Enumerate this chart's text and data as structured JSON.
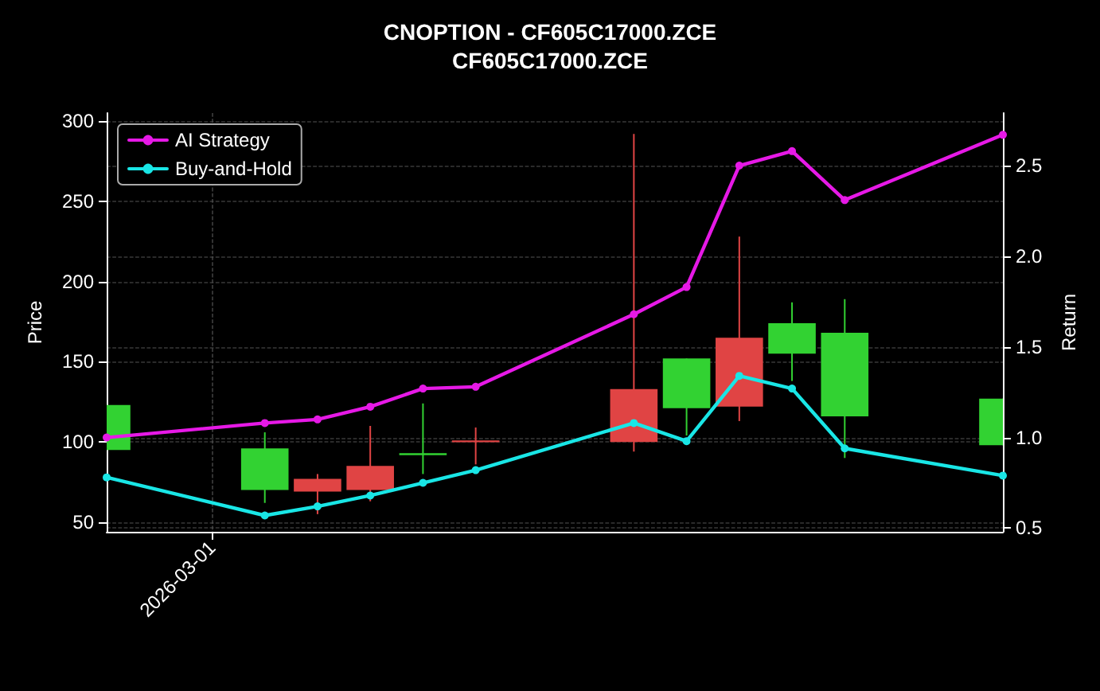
{
  "chart_data": {
    "type": "candlestick",
    "title": "CNOPTION - CF605C17000.ZCE",
    "subtitle": "CF605C17000.ZCE",
    "ylabel": "Price",
    "y2label": "Return",
    "categories": [
      null,
      null,
      "2026-03-01",
      null,
      null,
      null,
      null,
      null,
      null,
      null,
      null,
      null,
      null,
      null,
      null,
      null,
      null,
      null
    ],
    "ohlc": [
      [
        95,
        123,
        95,
        123
      ],
      null,
      null,
      [
        70,
        106,
        62,
        96
      ],
      [
        77,
        80,
        55,
        69
      ],
      [
        85,
        110,
        63,
        70
      ],
      [
        92,
        124,
        80,
        93
      ],
      [
        101,
        109,
        86,
        100
      ],
      null,
      null,
      [
        133,
        292,
        94,
        100
      ],
      [
        121,
        152,
        104,
        152
      ],
      [
        165,
        228,
        113,
        122
      ],
      [
        155,
        187,
        138,
        174
      ],
      [
        116,
        189,
        90,
        168
      ],
      null,
      null,
      [
        98,
        127,
        98,
        127
      ]
    ],
    "colors": [
      "#32d232",
      null,
      null,
      "#32d232",
      "#e04444",
      "#e04444",
      "#32d232",
      "#e04444",
      null,
      null,
      "#e04444",
      "#32d232",
      "#e04444",
      "#32d232",
      "#32d232",
      null,
      null,
      "#32d232"
    ],
    "series": [
      {
        "name": "AI Strategy",
        "type": "line",
        "axis": "y2",
        "color": "#e619e6",
        "values": [
          1.0,
          null,
          null,
          1.08,
          1.1,
          1.17,
          1.27,
          1.28,
          null,
          null,
          1.68,
          1.83,
          2.5,
          2.58,
          2.31,
          null,
          null,
          2.67
        ]
      },
      {
        "name": "Buy-and-Hold",
        "type": "line",
        "axis": "y2",
        "color": "#19e6e6",
        "values": [
          0.78,
          null,
          null,
          0.57,
          0.62,
          0.68,
          0.75,
          0.82,
          null,
          null,
          1.08,
          0.98,
          1.34,
          1.27,
          0.94,
          null,
          null,
          0.79
        ]
      }
    ],
    "ylim": [
      44,
      305
    ],
    "yticks": [
      50,
      100,
      150,
      200,
      250,
      300
    ],
    "y2lim": [
      0.48,
      2.79
    ],
    "y2ticks": [
      0.5,
      {
        "value": 1,
        "label": "1.0"
      },
      1.5,
      {
        "value": 2,
        "label": "2.0"
      },
      2.5
    ],
    "grid": true,
    "legend": "top left",
    "marker": "circle",
    "line_style": "solid"
  }
}
